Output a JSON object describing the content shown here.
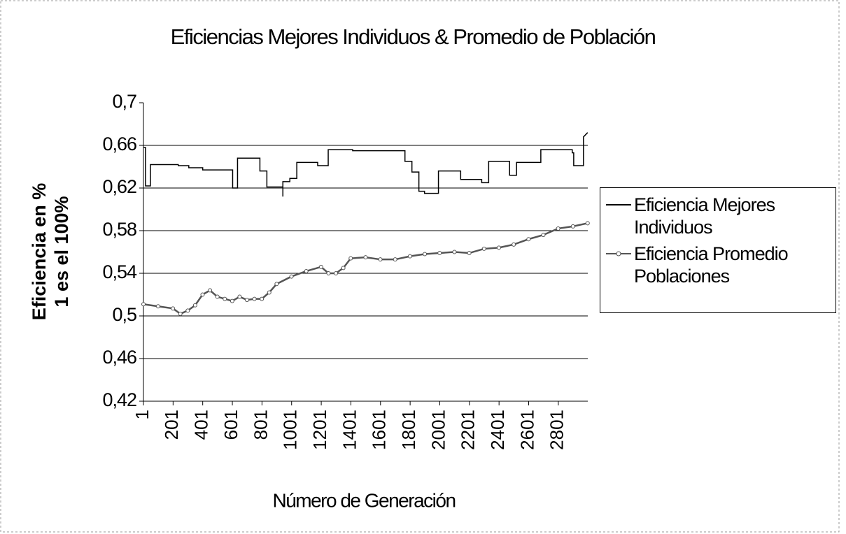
{
  "chart_data": {
    "type": "line",
    "title": "Eficiencias Mejores Individuos & Promedio de Población",
    "xlabel": "Número de Generación",
    "ylabel": [
      "Eficiencia en %",
      "1 es el 100%"
    ],
    "xlim": [
      1,
      3000
    ],
    "xticks": [
      1,
      201,
      401,
      601,
      801,
      1001,
      1201,
      1401,
      1601,
      1801,
      2001,
      2201,
      2401,
      2601,
      2801
    ],
    "ylim": [
      0.42,
      0.7
    ],
    "yticks": [
      {
        "value": 0.42,
        "label": "0,42"
      },
      {
        "value": 0.46,
        "label": "0,46"
      },
      {
        "value": 0.5,
        "label": "0,5"
      },
      {
        "value": 0.54,
        "label": "0,54"
      },
      {
        "value": 0.58,
        "label": "0,58"
      },
      {
        "value": 0.62,
        "label": "0,62"
      },
      {
        "value": 0.66,
        "label": "0,66"
      },
      {
        "value": 0.7,
        "label": "0,7"
      }
    ],
    "grid": true,
    "legend": "right",
    "series": [
      {
        "name": "Eficiencia Mejores Individuos",
        "color": "#000000",
        "marker": "none",
        "x": [
          1,
          15,
          15,
          48,
          48,
          236,
          236,
          307,
          307,
          401,
          401,
          603,
          603,
          636,
          636,
          787,
          787,
          834,
          834,
          942,
          942,
          942,
          989,
          989,
          1036,
          1036,
          1177,
          1177,
          1248,
          1248,
          1413,
          1413,
          1766,
          1766,
          1813,
          1813,
          1860,
          1860,
          1898,
          1898,
          1992,
          1992,
          2142,
          2142,
          2284,
          2284,
          2331,
          2331,
          2472,
          2472,
          2519,
          2519,
          2683,
          2683,
          2895,
          2895,
          2905,
          2905,
          2971,
          2971,
          2999
        ],
        "values": [
          0.658,
          0.658,
          0.622,
          0.622,
          0.642,
          0.642,
          0.641,
          0.641,
          0.639,
          0.639,
          0.637,
          0.637,
          0.62,
          0.62,
          0.648,
          0.648,
          0.636,
          0.636,
          0.621,
          0.621,
          0.612,
          0.626,
          0.626,
          0.629,
          0.629,
          0.644,
          0.644,
          0.641,
          0.641,
          0.656,
          0.656,
          0.655,
          0.655,
          0.645,
          0.645,
          0.635,
          0.635,
          0.617,
          0.617,
          0.615,
          0.615,
          0.636,
          0.636,
          0.628,
          0.628,
          0.625,
          0.625,
          0.645,
          0.645,
          0.632,
          0.632,
          0.644,
          0.644,
          0.656,
          0.656,
          0.653,
          0.653,
          0.641,
          0.641,
          0.668,
          0.672
        ]
      },
      {
        "name": "Eficiencia Promedio Poblaciones",
        "color": "#555555",
        "marker": "circle",
        "x": [
          1,
          100,
          200,
          250,
          300,
          350,
          400,
          450,
          500,
          550,
          600,
          650,
          700,
          750,
          800,
          850,
          900,
          1000,
          1100,
          1200,
          1250,
          1300,
          1350,
          1400,
          1500,
          1600,
          1700,
          1800,
          1900,
          2000,
          2100,
          2200,
          2300,
          2400,
          2500,
          2600,
          2700,
          2800,
          2900,
          2999
        ],
        "values": [
          0.511,
          0.509,
          0.507,
          0.502,
          0.505,
          0.51,
          0.52,
          0.524,
          0.518,
          0.516,
          0.514,
          0.518,
          0.515,
          0.516,
          0.516,
          0.522,
          0.53,
          0.537,
          0.542,
          0.546,
          0.54,
          0.54,
          0.545,
          0.554,
          0.555,
          0.553,
          0.553,
          0.556,
          0.558,
          0.559,
          0.56,
          0.559,
          0.563,
          0.564,
          0.567,
          0.572,
          0.576,
          0.582,
          0.584,
          0.587
        ]
      }
    ]
  }
}
